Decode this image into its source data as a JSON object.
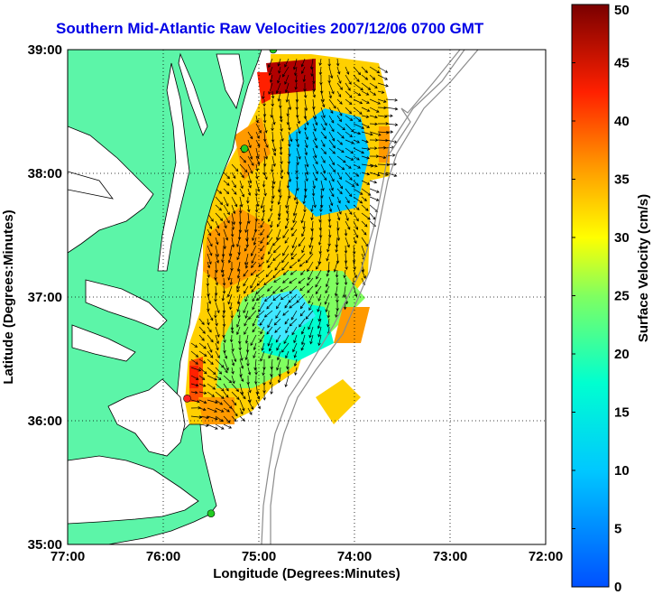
{
  "title": "Southern Mid-Atlantic Raw Velocities 2007/12/06 0700 GMT",
  "axes": {
    "xlabel": "Longitude (Degrees:Minutes)",
    "ylabel": "Latitude (Degrees:Minutes)",
    "x_ticks": [
      "77:00",
      "76:00",
      "75:00",
      "74:00",
      "73:00",
      "72:00"
    ],
    "y_ticks": [
      "39:00",
      "38:00",
      "37:00",
      "36:00",
      "35:00"
    ],
    "x_range_deg_west": [
      77,
      72
    ],
    "y_range_deg_north": [
      35,
      39
    ],
    "grid": "dotted"
  },
  "colorbar": {
    "label": "Surface Velocity (cm/s)",
    "ticks": [
      "50",
      "45",
      "40",
      "35",
      "30",
      "25",
      "20",
      "15",
      "10",
      "5",
      "0"
    ],
    "range": [
      0,
      50
    ],
    "colormap": "jet"
  },
  "colors": {
    "land": "#5cf5a8",
    "coastline": "#000000",
    "title": "#0000e6",
    "bathymetry": "#8c8c8c"
  },
  "stations": [
    {
      "name": "station-north",
      "lon": 74.85,
      "lat": 39.0,
      "color": "#22cc22"
    },
    {
      "name": "station-mid",
      "lon": 75.15,
      "lat": 38.2,
      "color": "#22cc22"
    },
    {
      "name": "station-south",
      "lon": 75.75,
      "lat": 36.18,
      "color": "#ff2020"
    },
    {
      "name": "station-hatteras",
      "lon": 75.5,
      "lat": 35.25,
      "color": "#22cc22"
    }
  ]
}
